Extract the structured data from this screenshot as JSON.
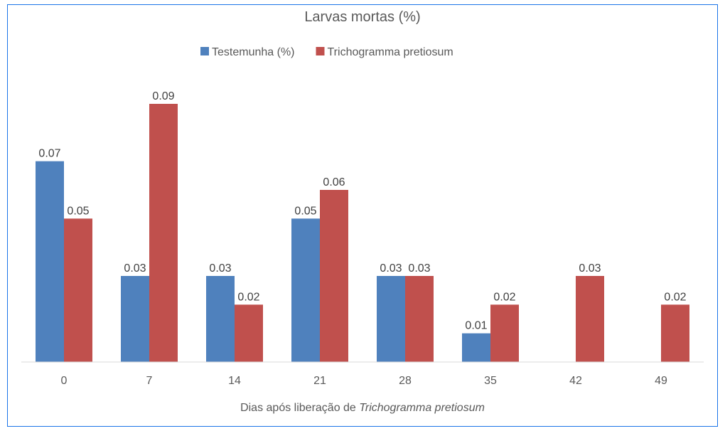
{
  "chart_data": {
    "type": "bar",
    "title": "Larvas mortas (%)",
    "xlabel_prefix": "Dias após liberação de ",
    "xlabel_italic": "Trichogramma pretiosum",
    "ylabel": "",
    "ylim": [
      0,
      0.1
    ],
    "grid": false,
    "legend_position": "top",
    "categories": [
      "0",
      "7",
      "14",
      "21",
      "28",
      "35",
      "42",
      "49"
    ],
    "series": [
      {
        "name": "Testemunha (%)",
        "color": "#4f81bd",
        "values": [
          0.07,
          0.03,
          0.03,
          0.05,
          0.03,
          0.01,
          null,
          null
        ]
      },
      {
        "name": "Trichogramma pretiosum",
        "color": "#c0504d",
        "values": [
          0.05,
          0.09,
          0.02,
          0.06,
          0.03,
          0.02,
          0.03,
          0.02
        ]
      }
    ]
  }
}
